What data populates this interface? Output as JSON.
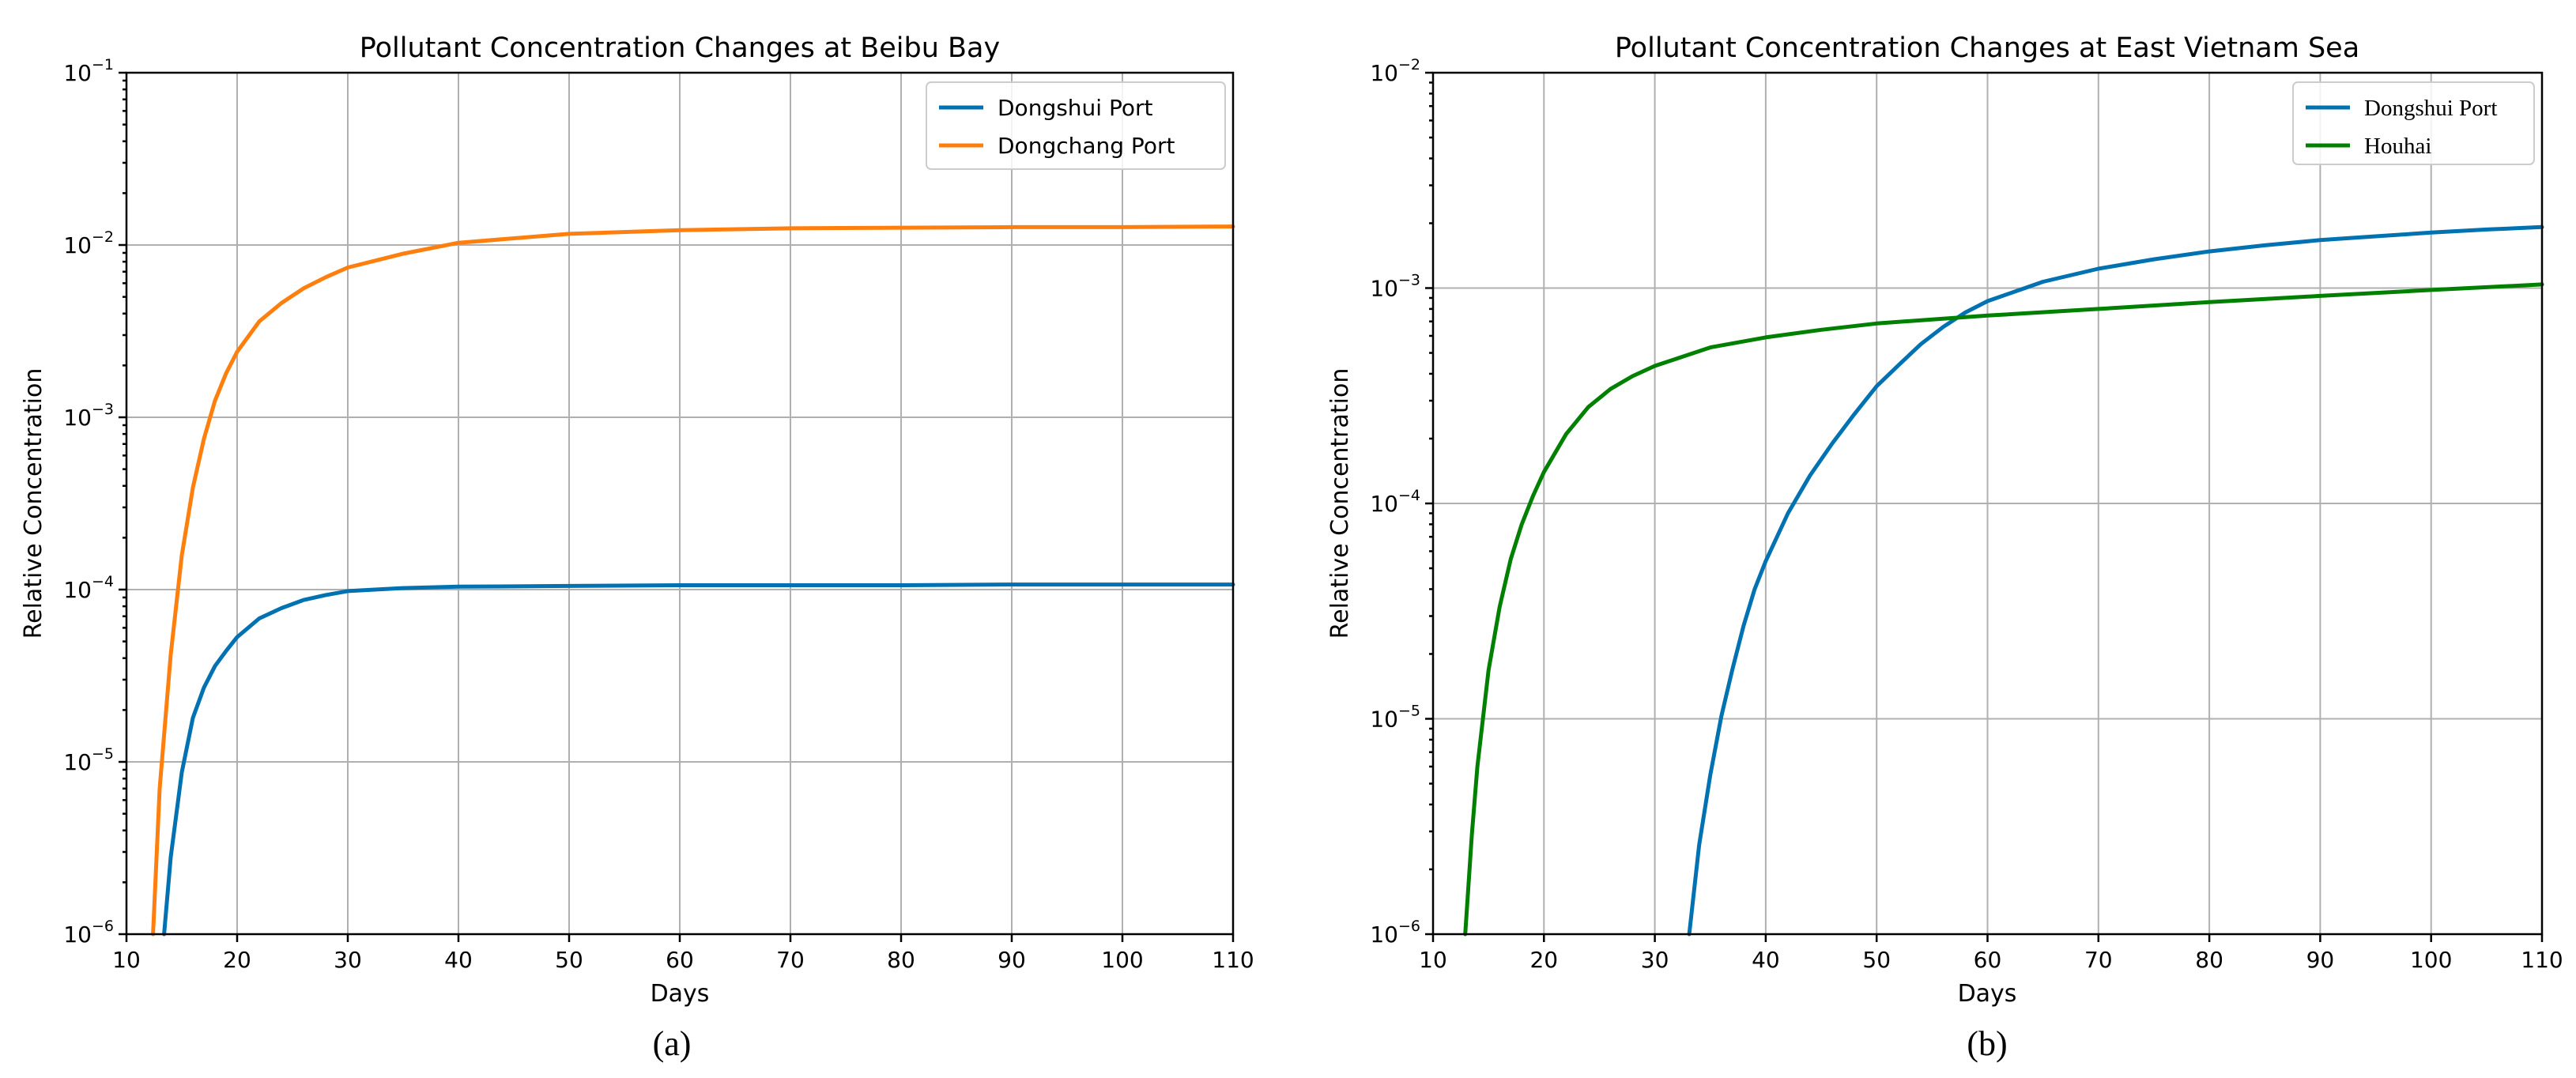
{
  "chart_data": [
    {
      "type": "line",
      "panel": "(a)",
      "title": "Pollutant Concentration Changes at Beibu Bay",
      "xlabel": "Days",
      "ylabel": "Relative Concentration",
      "xlim": [
        10,
        110
      ],
      "ylim": [
        1e-06,
        0.1
      ],
      "yscale": "log",
      "grid": true,
      "legend_position": "top-right",
      "legend_font": "sans",
      "x_ticks": [
        10,
        20,
        30,
        40,
        50,
        60,
        70,
        80,
        90,
        100,
        110
      ],
      "y_ticks": [
        {
          "base": "10",
          "exp": "−6"
        },
        {
          "base": "10",
          "exp": "−5"
        },
        {
          "base": "10",
          "exp": "−4"
        },
        {
          "base": "10",
          "exp": "−3"
        },
        {
          "base": "10",
          "exp": "−2"
        },
        {
          "base": "10",
          "exp": "−1"
        }
      ],
      "series": [
        {
          "name": "Dongshui Port",
          "color": "#0072b2",
          "x": [
            13.4,
            14,
            15,
            16,
            17,
            18,
            19,
            20,
            22,
            24,
            26,
            28,
            30,
            35,
            40,
            50,
            60,
            70,
            80,
            90,
            100,
            110
          ],
          "y": [
            1e-06,
            2.8e-06,
            8.7e-06,
            1.8e-05,
            2.7e-05,
            3.6e-05,
            4.4e-05,
            5.3e-05,
            6.8e-05,
            7.8e-05,
            8.7e-05,
            9.3e-05,
            9.8e-05,
            0.000102,
            0.000104,
            0.000105,
            0.000106,
            0.000106,
            0.000106,
            0.000107,
            0.000107,
            0.000107
          ]
        },
        {
          "name": "Dongchang Port",
          "color": "#ff7f0e",
          "x": [
            12.4,
            13,
            14,
            15,
            16,
            17,
            18,
            19,
            20,
            22,
            24,
            26,
            28,
            30,
            35,
            40,
            50,
            60,
            70,
            80,
            90,
            100,
            110
          ],
          "y": [
            1e-06,
            7e-06,
            4.2e-05,
            0.000158,
            0.00039,
            0.00075,
            0.00125,
            0.0018,
            0.0024,
            0.0036,
            0.0046,
            0.0056,
            0.0065,
            0.0074,
            0.0089,
            0.0103,
            0.0116,
            0.0122,
            0.0125,
            0.0126,
            0.0127,
            0.0127,
            0.0128
          ]
        }
      ]
    },
    {
      "type": "line",
      "panel": "(b)",
      "title": "Pollutant Concentration Changes at East Vietnam Sea",
      "xlabel": "Days",
      "ylabel": "Relative Concentration",
      "xlim": [
        10,
        110
      ],
      "ylim": [
        1e-06,
        0.01
      ],
      "yscale": "log",
      "grid": true,
      "legend_position": "top-right",
      "legend_font": "serif",
      "x_ticks": [
        10,
        20,
        30,
        40,
        50,
        60,
        70,
        80,
        90,
        100,
        110
      ],
      "y_ticks": [
        {
          "base": "10",
          "exp": "−6"
        },
        {
          "base": "10",
          "exp": "−5"
        },
        {
          "base": "10",
          "exp": "−4"
        },
        {
          "base": "10",
          "exp": "−3"
        },
        {
          "base": "10",
          "exp": "−2"
        }
      ],
      "series": [
        {
          "name": "Dongshui Port",
          "color": "#0072b2",
          "x": [
            33.1,
            34,
            35,
            36,
            37,
            38,
            39,
            40,
            42,
            44,
            46,
            48,
            50,
            52,
            54,
            56,
            58,
            60,
            65,
            70,
            75,
            80,
            85,
            90,
            95,
            100,
            105,
            110
          ],
          "y": [
            1e-06,
            2.6e-06,
            5.5e-06,
            1.03e-05,
            1.7e-05,
            2.7e-05,
            4e-05,
            5.4e-05,
            9e-05,
            0.000135,
            0.00019,
            0.00026,
            0.00035,
            0.00044,
            0.00055,
            0.00066,
            0.00077,
            0.00087,
            0.00107,
            0.00123,
            0.00136,
            0.00148,
            0.00158,
            0.00167,
            0.00174,
            0.00181,
            0.00187,
            0.00192
          ]
        },
        {
          "name": "Houhai",
          "color": "#008000",
          "x": [
            12.9,
            13.5,
            14,
            15,
            16,
            17,
            18,
            19,
            20,
            22,
            24,
            26,
            28,
            30,
            35,
            40,
            45,
            50,
            55,
            60,
            70,
            80,
            90,
            100,
            110
          ],
          "y": [
            1e-06,
            2.9e-06,
            6e-06,
            1.68e-05,
            3.3e-05,
            5.5e-05,
            8e-05,
            0.000108,
            0.00014,
            0.00021,
            0.00028,
            0.00034,
            0.00039,
            0.000435,
            0.00053,
            0.00059,
            0.00064,
            0.000685,
            0.000715,
            0.000745,
            0.0008,
            0.00086,
            0.00092,
            0.00098,
            0.00104
          ]
        }
      ]
    }
  ],
  "captions": [
    "(a)",
    "(b)"
  ]
}
